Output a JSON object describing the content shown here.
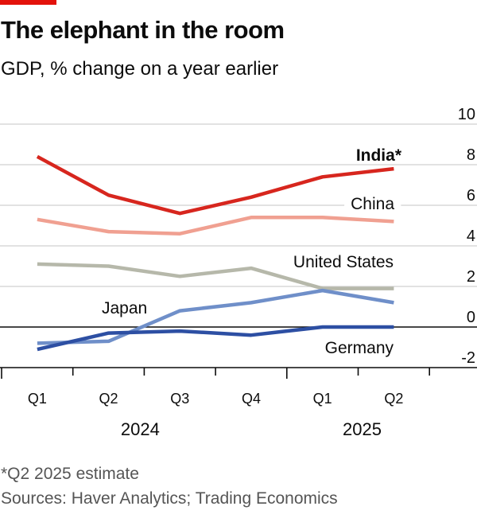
{
  "header": {
    "title": "The elephant in the room",
    "subtitle": "GDP, % change on a year earlier"
  },
  "footer": {
    "footnote": "*Q2 2025 estimate",
    "source": "Sources: Haver Analytics; Trading Economics"
  },
  "colors": {
    "brand_red": "#E3120B",
    "India": "#D7261E",
    "China": "#F0A091",
    "United States": "#B6B8AA",
    "Japan": "#6F8FC9",
    "Germany": "#2D4FA3",
    "grid": "#d0d0d0",
    "zero_line": "#0c0c0c"
  },
  "chart_data": {
    "type": "line",
    "title": "The elephant in the room",
    "subtitle": "GDP, % change on a year earlier",
    "xlabel": "",
    "ylabel": "GDP, % change on a year earlier",
    "categories": [
      "Q1",
      "Q2",
      "Q3",
      "Q4",
      "Q1",
      "Q2"
    ],
    "years": [
      {
        "label": "2024",
        "quarters": 4
      },
      {
        "label": "2025",
        "quarters": 2
      }
    ],
    "yticks": [
      10,
      8,
      6,
      4,
      2,
      0,
      -2
    ],
    "ylim": [
      -2,
      10
    ],
    "y_axis_side": "right",
    "grid": true,
    "legend": "inline-labels",
    "series": [
      {
        "name": "India",
        "label": "India*",
        "bold": true,
        "values": [
          8.4,
          6.5,
          5.6,
          6.4,
          7.4,
          7.8
        ]
      },
      {
        "name": "China",
        "label": "China",
        "bold": false,
        "values": [
          5.3,
          4.7,
          4.6,
          5.4,
          5.4,
          5.2
        ]
      },
      {
        "name": "United States",
        "label": "United States",
        "bold": false,
        "values": [
          3.1,
          3.0,
          2.5,
          2.9,
          1.9,
          1.9
        ]
      },
      {
        "name": "Japan",
        "label": "Japan",
        "bold": false,
        "values": [
          -0.8,
          -0.7,
          0.8,
          1.2,
          1.8,
          1.2
        ]
      },
      {
        "name": "Germany",
        "label": "Germany",
        "bold": false,
        "values": [
          -1.1,
          -0.3,
          -0.2,
          -0.4,
          0.0,
          0.0
        ]
      }
    ],
    "annotations": [
      "*Q2 2025 estimate"
    ]
  }
}
